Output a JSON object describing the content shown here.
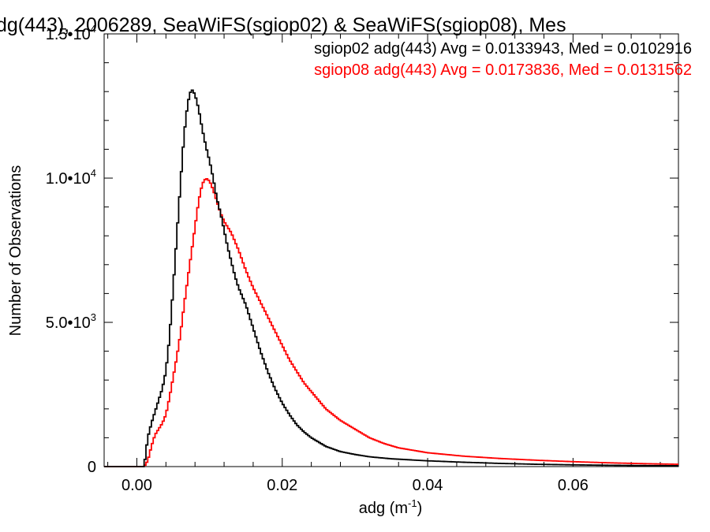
{
  "chart_data": {
    "type": "line",
    "title": "dg(443), 2006289, SeaWiFS(sgiop02) & SeaWiFS(sgiop08), Mes",
    "xlabel": "adg (m",
    "xlabel_sup": "-1",
    "xlabel_close": ")",
    "ylabel": "Number of Observations",
    "xlim": [
      -0.0045,
      0.0745
    ],
    "ylim": [
      0,
      15000
    ],
    "x_ticks": [
      {
        "value": 0.0,
        "label": "0.00"
      },
      {
        "value": 0.02,
        "label": "0.02"
      },
      {
        "value": 0.04,
        "label": "0.04"
      },
      {
        "value": 0.06,
        "label": "0.06"
      }
    ],
    "y_ticks": [
      {
        "value": 0,
        "label": "0",
        "sup": ""
      },
      {
        "value": 5000,
        "label": "5.0•10",
        "sup": "3"
      },
      {
        "value": 10000,
        "label": "1.0•10",
        "sup": "4"
      },
      {
        "value": 15000,
        "label": "1.5•10",
        "sup": "4"
      }
    ],
    "legend_position": "top-right",
    "series": [
      {
        "name": "sgiop02 adg(443) Avg = 0.0133943, Med = 0.0102916",
        "color": "#000000",
        "points": [
          [
            -0.0045,
            0
          ],
          [
            0.0005,
            0
          ],
          [
            0.001,
            0
          ],
          [
            0.0015,
            1000
          ],
          [
            0.002,
            1500
          ],
          [
            0.0025,
            1900
          ],
          [
            0.003,
            2300
          ],
          [
            0.0035,
            2700
          ],
          [
            0.004,
            3300
          ],
          [
            0.0045,
            4500
          ],
          [
            0.005,
            6200
          ],
          [
            0.0055,
            8000
          ],
          [
            0.006,
            9800
          ],
          [
            0.0065,
            11500
          ],
          [
            0.007,
            12600
          ],
          [
            0.0075,
            13100
          ],
          [
            0.008,
            12900
          ],
          [
            0.0085,
            12400
          ],
          [
            0.009,
            11700
          ],
          [
            0.0095,
            11100
          ],
          [
            0.01,
            10600
          ],
          [
            0.0105,
            10000
          ],
          [
            0.011,
            9300
          ],
          [
            0.0115,
            8800
          ],
          [
            0.012,
            8200
          ],
          [
            0.0125,
            7600
          ],
          [
            0.013,
            7100
          ],
          [
            0.0135,
            6600
          ],
          [
            0.014,
            6200
          ],
          [
            0.015,
            5600
          ],
          [
            0.016,
            4800
          ],
          [
            0.017,
            4000
          ],
          [
            0.018,
            3300
          ],
          [
            0.019,
            2700
          ],
          [
            0.02,
            2200
          ],
          [
            0.021,
            1800
          ],
          [
            0.022,
            1450
          ],
          [
            0.023,
            1200
          ],
          [
            0.024,
            1000
          ],
          [
            0.025,
            850
          ],
          [
            0.026,
            700
          ],
          [
            0.028,
            520
          ],
          [
            0.03,
            420
          ],
          [
            0.032,
            340
          ],
          [
            0.035,
            270
          ],
          [
            0.04,
            200
          ],
          [
            0.045,
            150
          ],
          [
            0.05,
            110
          ],
          [
            0.055,
            80
          ],
          [
            0.06,
            60
          ],
          [
            0.065,
            45
          ],
          [
            0.07,
            35
          ],
          [
            0.0745,
            30
          ]
        ]
      },
      {
        "name": "sgiop08 adg(443) Avg = 0.0173836, Med = 0.0131562",
        "color": "#ff0000",
        "points": [
          [
            -0.0045,
            0
          ],
          [
            0.001,
            0
          ],
          [
            0.0015,
            200
          ],
          [
            0.002,
            700
          ],
          [
            0.0025,
            1100
          ],
          [
            0.003,
            1300
          ],
          [
            0.0035,
            1500
          ],
          [
            0.004,
            1800
          ],
          [
            0.0045,
            2400
          ],
          [
            0.005,
            3100
          ],
          [
            0.0055,
            3800
          ],
          [
            0.006,
            4600
          ],
          [
            0.0065,
            5600
          ],
          [
            0.007,
            6500
          ],
          [
            0.0075,
            7400
          ],
          [
            0.008,
            8300
          ],
          [
            0.0085,
            9200
          ],
          [
            0.009,
            9800
          ],
          [
            0.0095,
            10000
          ],
          [
            0.01,
            9900
          ],
          [
            0.0105,
            9600
          ],
          [
            0.011,
            9200
          ],
          [
            0.0115,
            8800
          ],
          [
            0.012,
            8500
          ],
          [
            0.013,
            8100
          ],
          [
            0.014,
            7500
          ],
          [
            0.015,
            6800
          ],
          [
            0.016,
            6200
          ],
          [
            0.017,
            5700
          ],
          [
            0.018,
            5200
          ],
          [
            0.019,
            4700
          ],
          [
            0.02,
            4200
          ],
          [
            0.021,
            3700
          ],
          [
            0.022,
            3300
          ],
          [
            0.023,
            2900
          ],
          [
            0.024,
            2600
          ],
          [
            0.025,
            2300
          ],
          [
            0.026,
            2000
          ],
          [
            0.027,
            1800
          ],
          [
            0.028,
            1600
          ],
          [
            0.03,
            1300
          ],
          [
            0.032,
            1000
          ],
          [
            0.034,
            800
          ],
          [
            0.036,
            650
          ],
          [
            0.04,
            480
          ],
          [
            0.045,
            360
          ],
          [
            0.05,
            280
          ],
          [
            0.055,
            220
          ],
          [
            0.06,
            170
          ],
          [
            0.065,
            130
          ],
          [
            0.07,
            100
          ],
          [
            0.0745,
            80
          ]
        ]
      }
    ]
  }
}
